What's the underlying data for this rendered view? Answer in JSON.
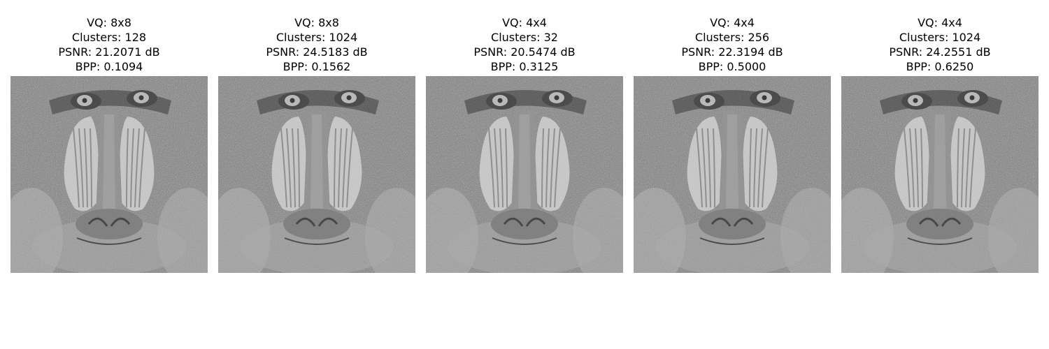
{
  "figure": {
    "panels": [
      {
        "vq_label": "VQ: 8x8",
        "clusters_label": "Clusters: 128",
        "psnr_label": "PSNR: 21.2071 dB",
        "bpp_label": "BPP: 0.1094",
        "image_subject": "grayscale mandrill (baboon) face",
        "block_size": 8
      },
      {
        "vq_label": "VQ: 8x8",
        "clusters_label": "Clusters: 1024",
        "psnr_label": "PSNR: 24.5183 dB",
        "bpp_label": "BPP: 0.1562",
        "image_subject": "grayscale mandrill (baboon) face",
        "block_size": 8
      },
      {
        "vq_label": "VQ: 4x4",
        "clusters_label": "Clusters: 32",
        "psnr_label": "PSNR: 20.5474 dB",
        "bpp_label": "BPP: 0.3125",
        "image_subject": "grayscale mandrill (baboon) face",
        "block_size": 4
      },
      {
        "vq_label": "VQ: 4x4",
        "clusters_label": "Clusters: 256",
        "psnr_label": "PSNR: 22.3194 dB",
        "bpp_label": "BPP: 0.5000",
        "image_subject": "grayscale mandrill (baboon) face",
        "block_size": 4
      },
      {
        "vq_label": "VQ: 4x4",
        "clusters_label": "Clusters: 1024",
        "psnr_label": "PSNR: 24.2551 dB",
        "bpp_label": "BPP: 0.6250",
        "image_subject": "grayscale mandrill (baboon) face",
        "block_size": 4
      }
    ]
  }
}
